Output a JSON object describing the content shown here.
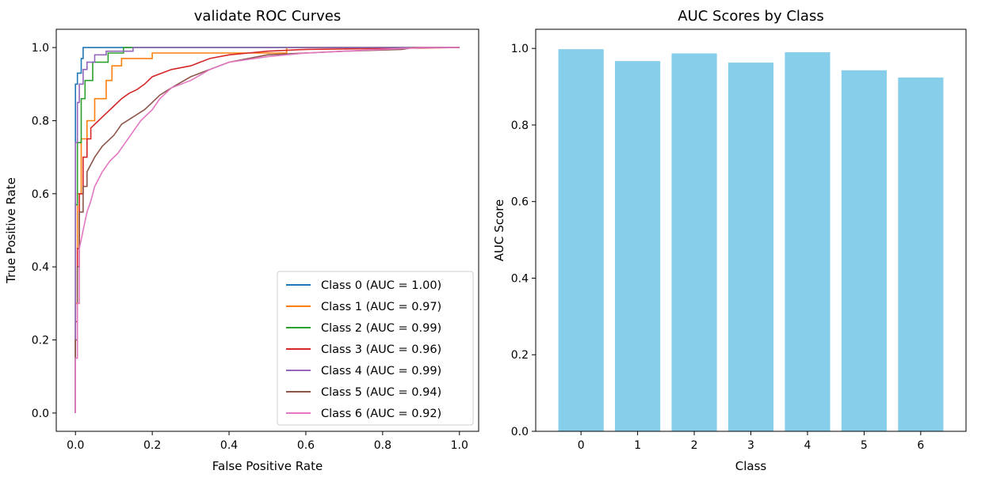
{
  "chart_data": [
    {
      "type": "line",
      "title": "validate ROC Curves",
      "xlabel": "False Positive Rate",
      "ylabel": "True Positive Rate",
      "xlim": [
        -0.05,
        1.05
      ],
      "ylim": [
        -0.05,
        1.05
      ],
      "xticks": [
        "0.0",
        "0.2",
        "0.4",
        "0.6",
        "0.8",
        "1.0"
      ],
      "yticks": [
        "0.0",
        "0.2",
        "0.4",
        "0.6",
        "0.8",
        "1.0"
      ],
      "grid": false,
      "legend_position": "lower-right",
      "series": [
        {
          "name": "Class 0 (AUC = 1.00)",
          "color": "#1f77b4",
          "points": [
            [
              0,
              0
            ],
            [
              0,
              0.9
            ],
            [
              0.005,
              0.9
            ],
            [
              0.005,
              0.93
            ],
            [
              0.015,
              0.93
            ],
            [
              0.015,
              0.97
            ],
            [
              0.02,
              0.97
            ],
            [
              0.02,
              1.0
            ],
            [
              1.0,
              1.0
            ]
          ]
        },
        {
          "name": "Class 1 (AUC = 0.97)",
          "color": "#ff7f0e",
          "points": [
            [
              0,
              0
            ],
            [
              0,
              0.3
            ],
            [
              0.005,
              0.3
            ],
            [
              0.005,
              0.6
            ],
            [
              0.015,
              0.6
            ],
            [
              0.015,
              0.75
            ],
            [
              0.03,
              0.75
            ],
            [
              0.03,
              0.8
            ],
            [
              0.05,
              0.8
            ],
            [
              0.05,
              0.86
            ],
            [
              0.08,
              0.86
            ],
            [
              0.08,
              0.91
            ],
            [
              0.095,
              0.91
            ],
            [
              0.095,
              0.95
            ],
            [
              0.12,
              0.95
            ],
            [
              0.12,
              0.97
            ],
            [
              0.2,
              0.97
            ],
            [
              0.2,
              0.985
            ],
            [
              0.55,
              0.985
            ],
            [
              0.55,
              1.0
            ],
            [
              1.0,
              1.0
            ]
          ]
        },
        {
          "name": "Class 2 (AUC = 0.99)",
          "color": "#2ca02c",
          "points": [
            [
              0,
              0
            ],
            [
              0,
              0.57
            ],
            [
              0.005,
              0.57
            ],
            [
              0.005,
              0.74
            ],
            [
              0.015,
              0.74
            ],
            [
              0.015,
              0.86
            ],
            [
              0.025,
              0.86
            ],
            [
              0.025,
              0.91
            ],
            [
              0.045,
              0.91
            ],
            [
              0.045,
              0.96
            ],
            [
              0.085,
              0.96
            ],
            [
              0.085,
              0.985
            ],
            [
              0.125,
              0.985
            ],
            [
              0.125,
              1.0
            ],
            [
              1.0,
              1.0
            ]
          ]
        },
        {
          "name": "Class 3 (AUC = 0.96)",
          "color": "#d62728",
          "points": [
            [
              0,
              0
            ],
            [
              0,
              0.25
            ],
            [
              0.005,
              0.25
            ],
            [
              0.005,
              0.45
            ],
            [
              0.01,
              0.45
            ],
            [
              0.01,
              0.6
            ],
            [
              0.02,
              0.6
            ],
            [
              0.02,
              0.7
            ],
            [
              0.03,
              0.7
            ],
            [
              0.03,
              0.75
            ],
            [
              0.04,
              0.75
            ],
            [
              0.04,
              0.78
            ],
            [
              0.06,
              0.8
            ],
            [
              0.08,
              0.82
            ],
            [
              0.1,
              0.84
            ],
            [
              0.12,
              0.86
            ],
            [
              0.14,
              0.875
            ],
            [
              0.16,
              0.885
            ],
            [
              0.18,
              0.9
            ],
            [
              0.2,
              0.92
            ],
            [
              0.25,
              0.94
            ],
            [
              0.3,
              0.95
            ],
            [
              0.35,
              0.97
            ],
            [
              0.4,
              0.98
            ],
            [
              0.45,
              0.985
            ],
            [
              0.5,
              0.99
            ],
            [
              0.6,
              0.995
            ],
            [
              1.0,
              1.0
            ]
          ]
        },
        {
          "name": "Class 4 (AUC = 0.99)",
          "color": "#9467bd",
          "points": [
            [
              0,
              0
            ],
            [
              0,
              0.74
            ],
            [
              0.005,
              0.74
            ],
            [
              0.005,
              0.85
            ],
            [
              0.01,
              0.85
            ],
            [
              0.01,
              0.9
            ],
            [
              0.02,
              0.9
            ],
            [
              0.02,
              0.94
            ],
            [
              0.03,
              0.94
            ],
            [
              0.03,
              0.96
            ],
            [
              0.05,
              0.96
            ],
            [
              0.05,
              0.98
            ],
            [
              0.08,
              0.98
            ],
            [
              0.08,
              0.99
            ],
            [
              0.15,
              0.99
            ],
            [
              0.15,
              1.0
            ],
            [
              1.0,
              1.0
            ]
          ]
        },
        {
          "name": "Class 5 (AUC = 0.94)",
          "color": "#8c564b",
          "points": [
            [
              0,
              0
            ],
            [
              0,
              0.2
            ],
            [
              0.005,
              0.2
            ],
            [
              0.005,
              0.4
            ],
            [
              0.01,
              0.4
            ],
            [
              0.01,
              0.55
            ],
            [
              0.02,
              0.55
            ],
            [
              0.02,
              0.62
            ],
            [
              0.03,
              0.62
            ],
            [
              0.03,
              0.66
            ],
            [
              0.05,
              0.7
            ],
            [
              0.07,
              0.73
            ],
            [
              0.1,
              0.76
            ],
            [
              0.12,
              0.79
            ],
            [
              0.15,
              0.81
            ],
            [
              0.18,
              0.83
            ],
            [
              0.2,
              0.85
            ],
            [
              0.22,
              0.87
            ],
            [
              0.25,
              0.89
            ],
            [
              0.3,
              0.92
            ],
            [
              0.35,
              0.94
            ],
            [
              0.4,
              0.96
            ],
            [
              0.45,
              0.97
            ],
            [
              0.5,
              0.98
            ],
            [
              0.6,
              0.985
            ],
            [
              0.7,
              0.99
            ],
            [
              0.85,
              0.995
            ],
            [
              0.88,
              1.0
            ],
            [
              1.0,
              1.0
            ]
          ]
        },
        {
          "name": "Class 6 (AUC = 0.92)",
          "color": "#e377c2",
          "points": [
            [
              0,
              0
            ],
            [
              0,
              0.15
            ],
            [
              0.005,
              0.15
            ],
            [
              0.005,
              0.3
            ],
            [
              0.01,
              0.3
            ],
            [
              0.01,
              0.45
            ],
            [
              0.02,
              0.5
            ],
            [
              0.03,
              0.55
            ],
            [
              0.04,
              0.58
            ],
            [
              0.05,
              0.62
            ],
            [
              0.07,
              0.66
            ],
            [
              0.09,
              0.69
            ],
            [
              0.11,
              0.71
            ],
            [
              0.13,
              0.74
            ],
            [
              0.15,
              0.77
            ],
            [
              0.17,
              0.8
            ],
            [
              0.2,
              0.83
            ],
            [
              0.22,
              0.86
            ],
            [
              0.25,
              0.89
            ],
            [
              0.3,
              0.91
            ],
            [
              0.35,
              0.94
            ],
            [
              0.4,
              0.96
            ],
            [
              0.5,
              0.975
            ],
            [
              0.6,
              0.985
            ],
            [
              0.7,
              0.99
            ],
            [
              0.8,
              0.995
            ],
            [
              0.9,
              1.0
            ],
            [
              1.0,
              1.0
            ]
          ]
        }
      ]
    },
    {
      "type": "bar",
      "title": "AUC Scores by Class",
      "xlabel": "Class",
      "ylabel": "AUC Score",
      "categories": [
        "0",
        "1",
        "2",
        "3",
        "4",
        "5",
        "6"
      ],
      "values": [
        0.998,
        0.967,
        0.987,
        0.963,
        0.99,
        0.943,
        0.924
      ],
      "ylim": [
        0,
        1.05
      ],
      "yticks": [
        "0.0",
        "0.2",
        "0.4",
        "0.6",
        "0.8",
        "1.0"
      ],
      "bar_color": "#87ceeb",
      "grid": false
    }
  ]
}
